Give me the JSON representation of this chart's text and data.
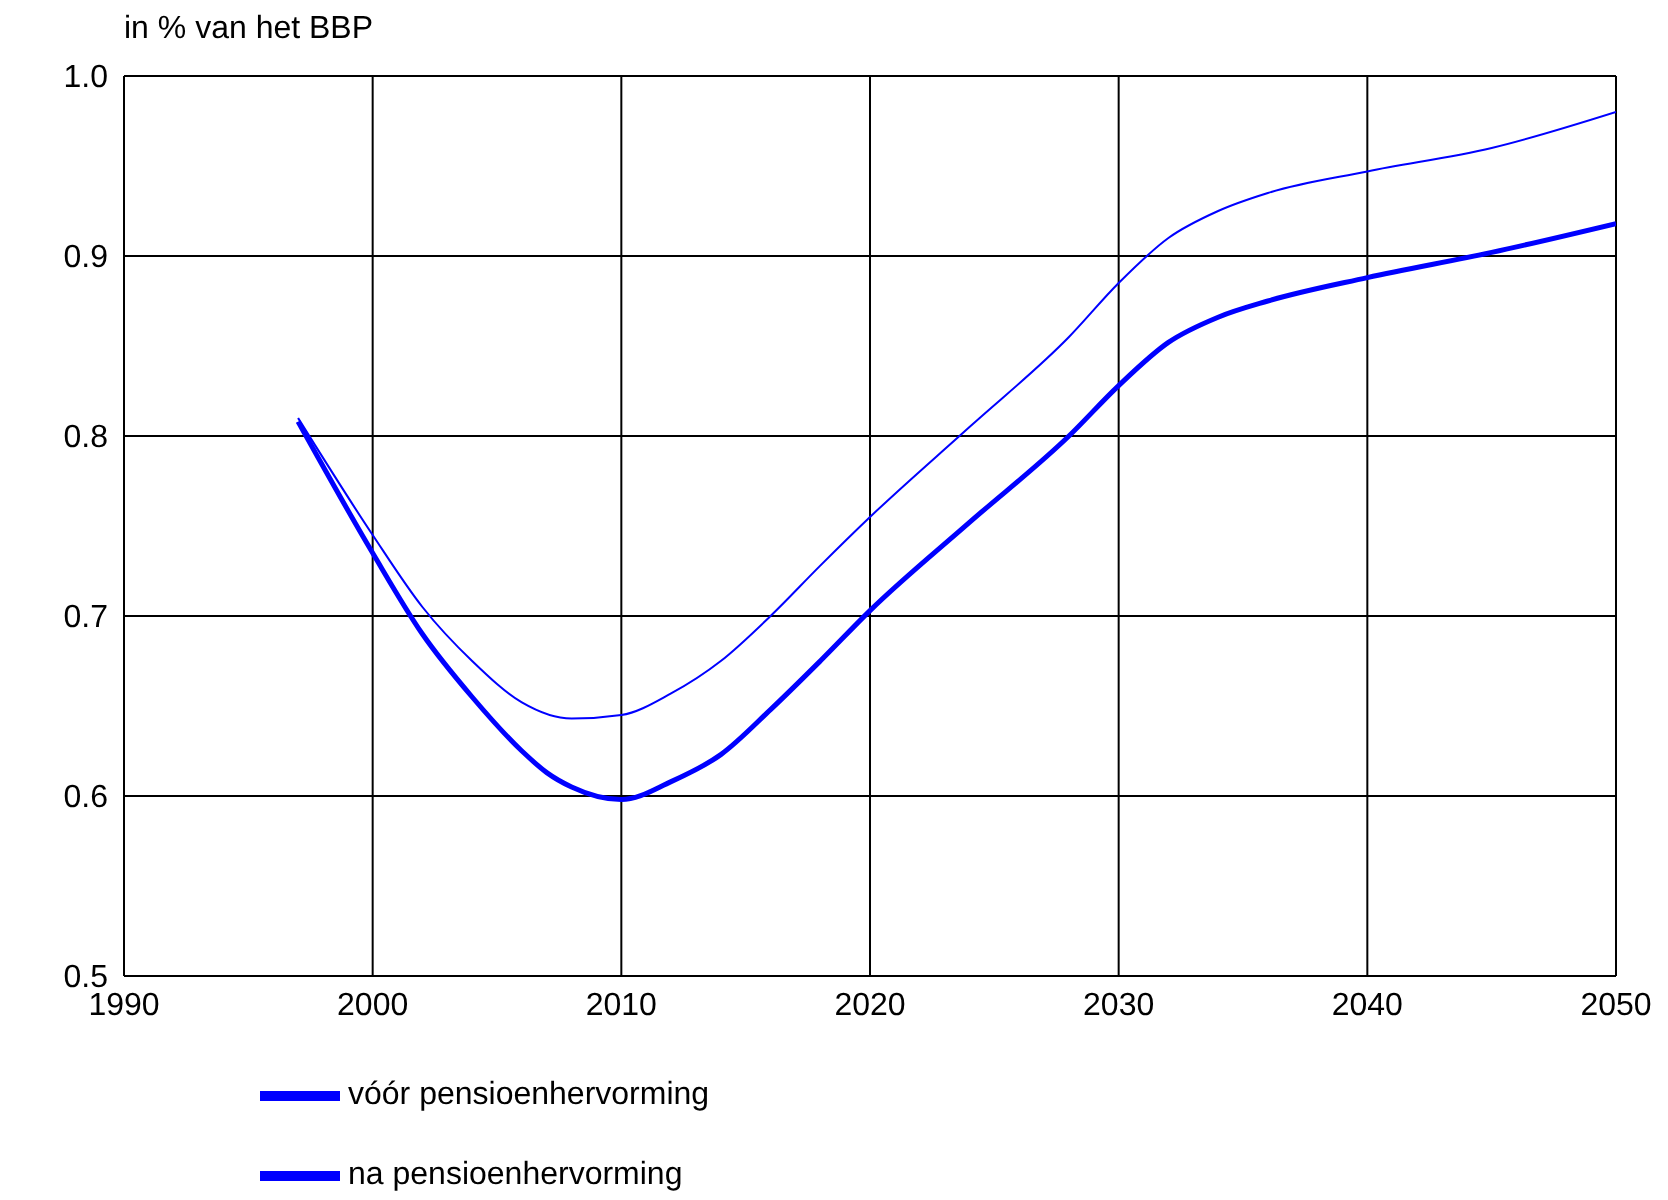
{
  "chart_data": {
    "type": "line",
    "ylabel": "in % van het BBP",
    "xlim": [
      1990,
      2050
    ],
    "xticks": [
      1990,
      2000,
      2010,
      2020,
      2030,
      2040,
      2050
    ],
    "ylim": [
      0.5,
      1.0
    ],
    "yticks": [
      0.5,
      0.6,
      0.7,
      0.8,
      0.9,
      {
        "value": 1.0,
        "label": "1.0"
      }
    ],
    "grid": true,
    "legend": "bottom",
    "marker": "none",
    "line_style": "solid",
    "series": [
      {
        "name": "vóór pensioenhervorming",
        "color": "#0000ff",
        "x": [
          1997,
          2000,
          2002,
          2004,
          2006,
          2008,
          2010,
          2012,
          2014,
          2016,
          2018,
          2020,
          2024,
          2028,
          2030,
          2032,
          2034,
          2036,
          2040,
          2045,
          2050
        ],
        "values": [
          0.81,
          0.745,
          0.705,
          0.675,
          0.652,
          0.643,
          0.645,
          0.657,
          0.675,
          0.7,
          0.728,
          0.755,
          0.805,
          0.855,
          0.885,
          0.91,
          0.925,
          0.935,
          0.947,
          0.96,
          0.98
        ]
      },
      {
        "name": "na pensioenhervorming",
        "color": "#0000ff",
        "x": [
          1997,
          2000,
          2002,
          2004,
          2006,
          2007,
          2008,
          2010,
          2012,
          2014,
          2016,
          2018,
          2020,
          2024,
          2028,
          2030,
          2032,
          2034,
          2036,
          2040,
          2045,
          2050
        ],
        "values": [
          0.808,
          0.735,
          0.69,
          0.655,
          0.625,
          0.613,
          0.605,
          0.598,
          0.608,
          0.623,
          0.648,
          0.675,
          0.703,
          0.752,
          0.8,
          0.828,
          0.852,
          0.866,
          0.875,
          0.888,
          0.902,
          0.918
        ]
      }
    ]
  }
}
